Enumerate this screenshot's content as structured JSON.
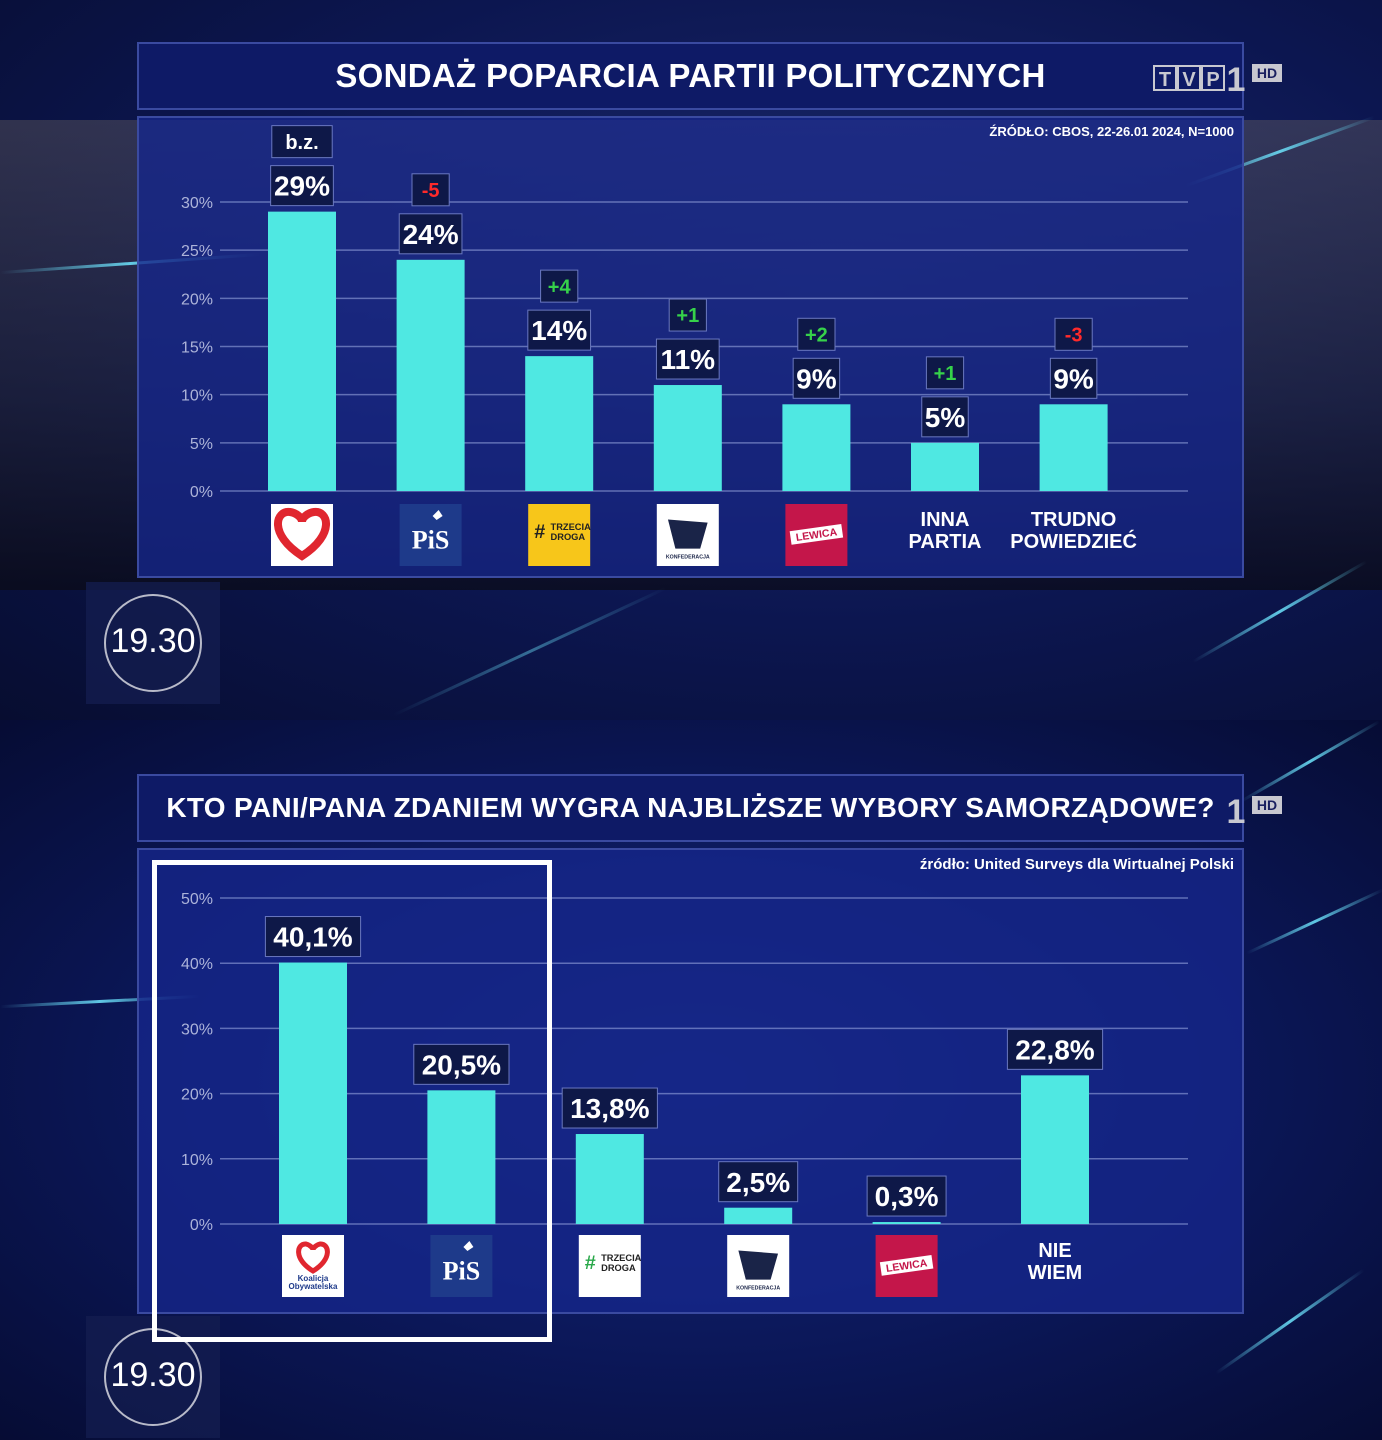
{
  "broadcast": {
    "channel_logo_text": "TVP",
    "channel_number": "1",
    "hd_badge": "HD",
    "clock_time": "19.30"
  },
  "screen1": {
    "title": "SONDAŻ POPARCIA PARTII POLITYCZNYCH",
    "source": "ŹRÓDŁO: CBOS, 22-26.01 2024, N=1000"
  },
  "screen2": {
    "title": "KTO PANI/PANA ZDANIEM WYGRA NAJBLIŻSZE WYBORY SAMORZĄDOWE?",
    "source": "źródło: United Surveys dla Wirtualnej Polski"
  },
  "colors": {
    "bar": "#4fe8e2",
    "up": "#36d24a",
    "down": "#ff2a2a",
    "label_bg": "#0e1848",
    "ko_red": "#e0262f",
    "pis_blue": "#1e3a8a",
    "td_yellow": "#f7c61a",
    "lewica": "#c4164a"
  },
  "chart_data": [
    {
      "type": "bar",
      "title": "SONDAŻ POPARCIA PARTII POLITYCZNYCH",
      "ylim": [
        0,
        30
      ],
      "yticks": [
        "0%",
        "5%",
        "10%",
        "15%",
        "20%",
        "25%",
        "30%"
      ],
      "categories": [
        "ko",
        "pis",
        "trzecia-droga",
        "konfederacja",
        "lewica",
        "INNA PARTIA",
        "TRUDNO POWIEDZIEĆ"
      ],
      "values": [
        29,
        24,
        14,
        11,
        9,
        5,
        9
      ],
      "value_labels": [
        "29%",
        "24%",
        "14%",
        "11%",
        "9%",
        "5%",
        "9%"
      ],
      "changes": [
        "b.z.",
        "-5",
        "+4",
        "+1",
        "+2",
        "+1",
        "-3"
      ],
      "logos": [
        {
          "icon": "heart-logo"
        },
        {
          "icon": "pis-logo",
          "text": "PiS"
        },
        {
          "icon": "trzecia-droga-logo",
          "text": "#TRZECIA DROGA"
        },
        {
          "icon": "konfederacja-logo",
          "text": "KONFEDERACJA"
        },
        {
          "icon": "lewica-logo",
          "text": "LEWICA"
        },
        {
          "text_lines": [
            "INNA",
            "PARTIA"
          ]
        },
        {
          "text_lines": [
            "TRUDNO",
            "POWIEDZIEĆ"
          ]
        }
      ],
      "grid": true
    },
    {
      "type": "bar",
      "title": "KTO PANI/PANA ZDANIEM WYGRA NAJBLIŻSZE WYBORY SAMORZĄDOWE?",
      "ylim": [
        0,
        50
      ],
      "yticks": [
        "0%",
        "10%",
        "20%",
        "30%",
        "40%",
        "50%"
      ],
      "categories": [
        "koalicja-obywatelska",
        "pis",
        "trzecia-droga",
        "konfederacja",
        "lewica",
        "NIE WIEM"
      ],
      "values": [
        40.1,
        20.5,
        13.8,
        2.5,
        0.3,
        22.8
      ],
      "value_labels": [
        "40,1%",
        "20,5%",
        "13,8%",
        "2,5%",
        "0,3%",
        "22,8%"
      ],
      "logos": [
        {
          "icon": "koalicja-obywatelska-logo",
          "text_lines": [
            "Koalicja",
            "Obywatelska"
          ]
        },
        {
          "icon": "pis-logo",
          "text": "PiS"
        },
        {
          "icon": "trzecia-droga-logo",
          "text": "#TRZECIA DROGA"
        },
        {
          "icon": "konfederacja-logo",
          "text": "KONFEDERACJA"
        },
        {
          "icon": "lewica-logo",
          "text": "LEWICA"
        },
        {
          "text_lines": [
            "NIE",
            "WIEM"
          ]
        }
      ],
      "grid": true
    }
  ]
}
